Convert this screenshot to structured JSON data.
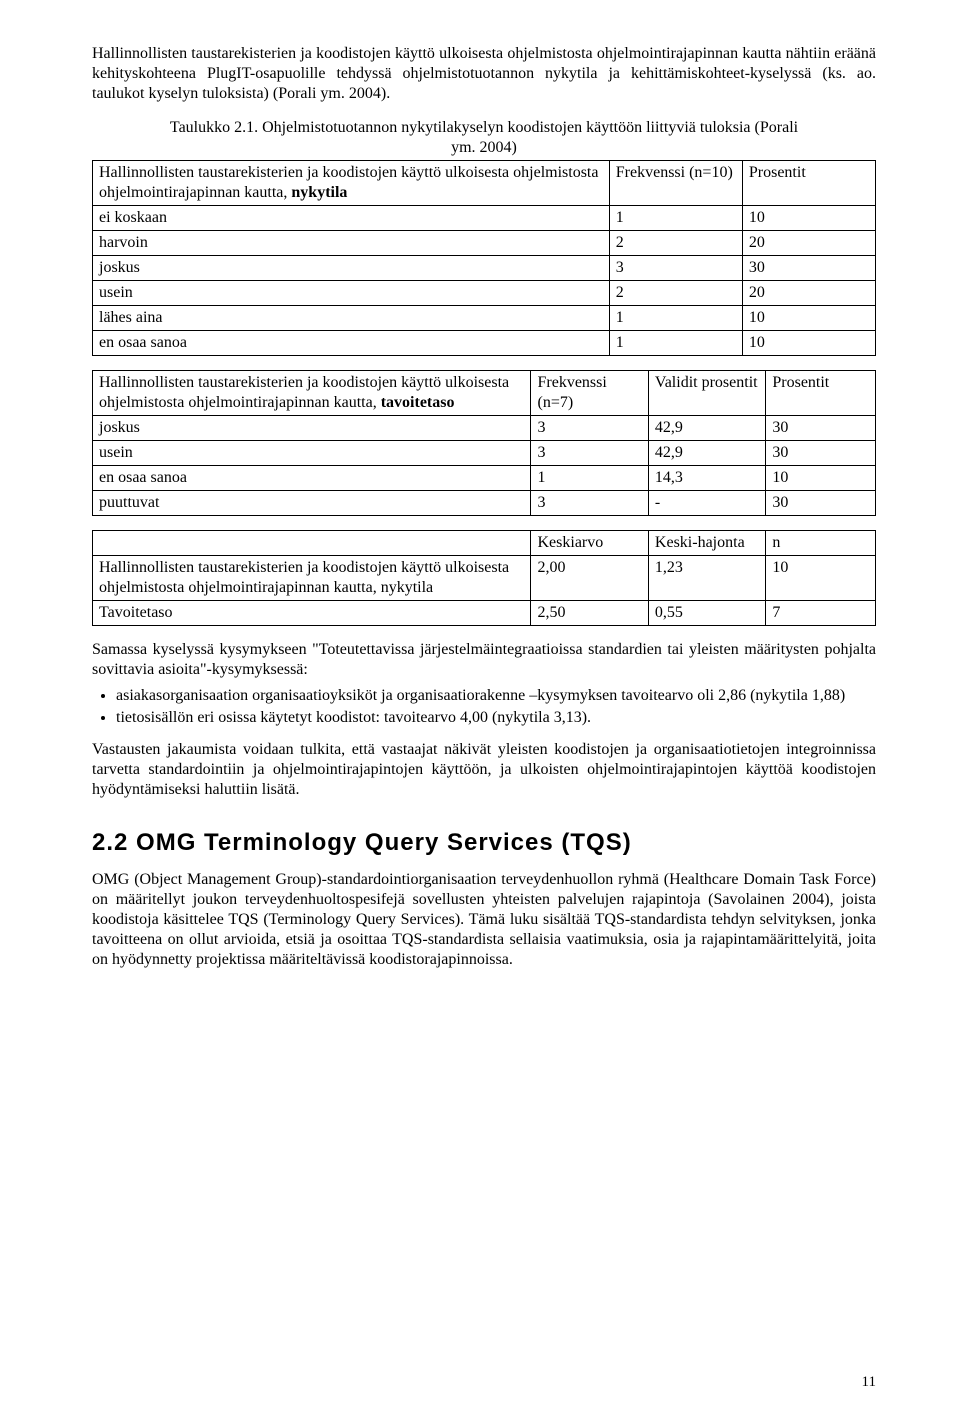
{
  "intro_paragraph": "Hallinnollisten taustarekisterien ja koodistojen käyttö ulkoisesta ohjelmistosta ohjelmointirajapinnan kautta nähtiin eräänä kehityskohteena PlugIT-osapuolille tehdyssä ohjelmistotuotannon nykytila ja kehittämiskohteet-kyselyssä (ks. ao. taulukot kyselyn tuloksista) (Porali ym. 2004).",
  "table_caption_line1": "Taulukko 2.1. Ohjelmistotuotannon nykytilakyselyn koodistojen käyttöön liittyviä tuloksia (Porali",
  "table_caption_line2": "ym. 2004)",
  "table1": {
    "header_label_part1": "Hallinnollisten taustarekisterien ja koodistojen käyttö ulkoisesta ohjelmistosta ohjelmointirajapinnan kautta, ",
    "header_label_bold": "nykytila",
    "freq_label": "Frekvenssi (n=10)",
    "pct_label": "Prosentit",
    "rows": [
      {
        "label": "ei koskaan",
        "freq": "1",
        "pct": "10"
      },
      {
        "label": "harvoin",
        "freq": "2",
        "pct": "20"
      },
      {
        "label": "joskus",
        "freq": "3",
        "pct": "30"
      },
      {
        "label": "usein",
        "freq": "2",
        "pct": "20"
      },
      {
        "label": "lähes aina",
        "freq": "1",
        "pct": "10"
      },
      {
        "label": "en osaa sanoa",
        "freq": "1",
        "pct": "10"
      }
    ]
  },
  "table2": {
    "header_label_part1": "Hallinnollisten taustarekisterien ja koodistojen käyttö ulkoisesta ohjelmistosta ohjelmointirajapinnan kautta, ",
    "header_label_bold": "tavoitetaso",
    "freq_label": "Frekvenssi (n=7)",
    "valid_label": "Validit prosentit",
    "pct_label": "Prosentit",
    "rows": [
      {
        "label": "joskus",
        "freq": "3",
        "valid": "42,9",
        "pct": "30"
      },
      {
        "label": "usein",
        "freq": "3",
        "valid": "42,9",
        "pct": "30"
      },
      {
        "label": "en osaa sanoa",
        "freq": "1",
        "valid": "14,3",
        "pct": "10"
      },
      {
        "label": "puuttuvat",
        "freq": "3",
        "valid": "-",
        "pct": "30"
      }
    ]
  },
  "table3": {
    "mean_label": "Keskiarvo",
    "sd_label": "Keski-hajonta",
    "n_label": "n",
    "rows": [
      {
        "label": "Hallinnollisten taustarekisterien ja koodistojen käyttö ulkoisesta ohjelmistosta ohjelmointirajapinnan kautta, nykytila",
        "mean": "2,00",
        "sd": "1,23",
        "n": "10"
      },
      {
        "label": "Tavoitetaso",
        "mean": "2,50",
        "sd": "0,55",
        "n": "7"
      }
    ]
  },
  "para2": "Samassa kyselyssä kysymykseen \"Toteutettavissa järjestelmäintegraatioissa standardien tai yleisten määritysten pohjalta sovittavia asioita\"-kysymyksessä:",
  "bullets": [
    "asiakasorganisaation organisaatioyksiköt ja organisaatiorakenne –kysymyksen tavoitearvo oli 2,86 (nykytila 1,88)",
    "tietosisällön eri osissa käytetyt koodistot: tavoitearvo 4,00 (nykytila 3,13)."
  ],
  "para3": "Vastausten jakaumista voidaan tulkita, että vastaajat näkivät yleisten koodistojen ja organisaatiotietojen integroinnissa tarvetta standardointiin ja ohjelmointirajapintojen käyttöön, ja ulkoisten ohjelmointirajapintojen käyttöä koodistojen hyödyntämiseksi haluttiin lisätä.",
  "section_heading": "2.2 OMG Terminology Query Services (TQS)",
  "para4": "OMG (Object Management Group)-standardointiorganisaation terveydenhuollon ryhmä (Healthcare Domain Task Force) on määritellyt joukon terveydenhuoltospesifejä sovellusten yhteisten palvelujen rajapintoja (Savolainen 2004), joista koodistoja käsittelee TQS (Terminology Query Services). Tämä luku sisältää TQS-standardista tehdyn selvityksen, jonka tavoitteena on ollut arvioida, etsiä ja osoittaa TQS-standardista sellaisia vaatimuksia, osia ja rajapintamäärittelyitä, joita on hyödynnetty projektissa määriteltävissä koodistorajapinnoissa.",
  "page_number": "11"
}
